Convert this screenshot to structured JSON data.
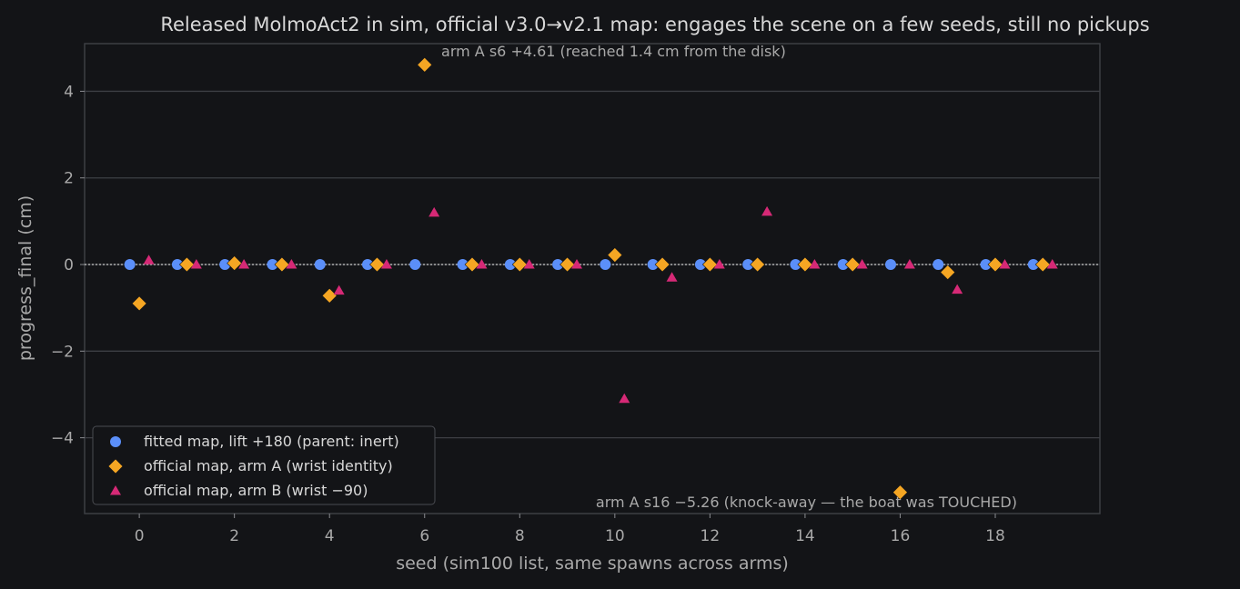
{
  "chart_data": {
    "type": "scatter",
    "title": "Released MolmoAct2 in sim, official v3.0→v2.1 map: engages the scene on a few seeds, still no pickups",
    "xlabel": "seed (sim100 list, same spawns across arms)",
    "ylabel": "progress_final (cm)",
    "xlim": [
      -1.15,
      20.2
    ],
    "ylim": [
      -5.75,
      5.1
    ],
    "xticks": [
      0,
      2,
      4,
      6,
      8,
      10,
      12,
      14,
      16,
      18
    ],
    "yticks": [
      -4,
      -2,
      0,
      2,
      4
    ],
    "ytick_labels": [
      "−4",
      "−2",
      "0",
      "2",
      "4"
    ],
    "grid": true,
    "reference_line_y": 0,
    "legend_position": "lower-left",
    "series": [
      {
        "name": "fitted map, lift +180 (parent: inert)",
        "marker": "circle",
        "color": "#5b8ff9",
        "x": [
          -0.2,
          0.8,
          1.8,
          2.8,
          3.8,
          4.8,
          5.8,
          6.8,
          7.8,
          8.8,
          9.8,
          10.8,
          11.8,
          12.8,
          13.8,
          14.8,
          15.8,
          16.8,
          17.8,
          18.8
        ],
        "y": [
          0,
          0,
          0,
          0,
          0,
          0,
          0,
          0,
          0,
          0,
          0,
          0,
          0,
          0,
          0,
          0,
          0,
          0,
          0,
          0
        ]
      },
      {
        "name": "official map, arm A (wrist identity)",
        "marker": "diamond",
        "color": "#f5a623",
        "x": [
          0,
          1,
          2,
          3,
          4,
          5,
          6,
          7,
          8,
          9,
          10,
          11,
          12,
          13,
          14,
          15,
          16,
          17,
          18,
          19
        ],
        "y": [
          -0.9,
          0,
          0.03,
          0,
          -0.72,
          0,
          4.61,
          0,
          0,
          0,
          0.22,
          0,
          0,
          0,
          0,
          0,
          -5.26,
          -0.18,
          0,
          0
        ]
      },
      {
        "name": "official map, arm B (wrist −90)",
        "marker": "triangle",
        "color": "#d62976",
        "x": [
          0.2,
          1.2,
          2.2,
          3.2,
          4.2,
          5.2,
          6.2,
          7.2,
          8.2,
          9.2,
          10.2,
          11.2,
          12.2,
          13.2,
          14.2,
          15.2,
          16.2,
          17.2,
          18.2,
          19.2
        ],
        "y": [
          0.1,
          0,
          0,
          0,
          -0.6,
          0,
          1.2,
          0,
          0,
          0,
          -3.1,
          -0.3,
          0,
          1.22,
          0,
          0,
          0,
          -0.58,
          0,
          0
        ]
      }
    ],
    "annotations": [
      {
        "text": "arm A s6 +4.61 (reached 1.4 cm from the disk)",
        "x": 6.35,
        "y": 4.81
      },
      {
        "text": "arm A s16 −5.26 (knock-away — the boat was TOUCHED)",
        "x": 9.6,
        "y": -5.6
      }
    ]
  }
}
